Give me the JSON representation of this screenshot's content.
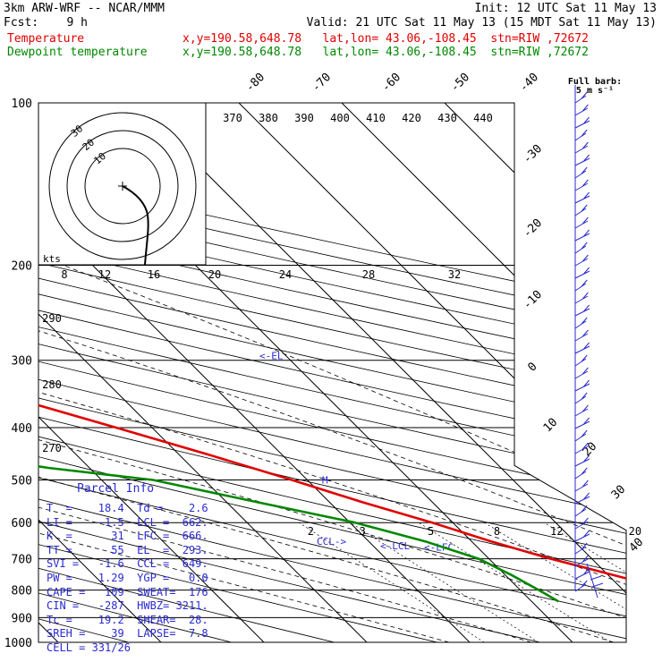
{
  "header": {
    "line1_left": "3km ARW-WRF -- NCAR/MMM",
    "line1_right": "Init: 12 UTC Sat 11 May 13",
    "line2_left": "Fcst:    9 h",
    "line2_right": "Valid: 21 UTC Sat 11 May 13 (15 MDT Sat 11 May 13)",
    "temp_label": "Temperature",
    "temp_loc": "x,y=190.58,648.78   lat,lon= 43.06,-108.45  stn=RIW ,72672",
    "dew_label": "Dewpoint temperature",
    "dew_loc": "x,y=190.58,648.78   lat,lon= 43.06,-108.45  stn=RIW ,72672",
    "barb_title": "Full barb:",
    "barb_units": "5 m s⁻¹"
  },
  "colors": {
    "temperature": "#e00000",
    "dewpoint": "#008800",
    "parcel_text": "#2a2ad0",
    "grid": "#000000"
  },
  "parcel": {
    "title": "Parcel Info",
    "rows": [
      [
        "T  =",
        "18.4",
        "Td =",
        "2.6"
      ],
      [
        "LI =",
        "-1.5",
        "LCL =",
        "662."
      ],
      [
        "K  =",
        "31",
        "LFC =",
        "666."
      ],
      [
        "TT =",
        "55",
        "EL  =",
        "293."
      ],
      [
        "SVI =",
        "-1.6",
        "CCL =",
        "649."
      ],
      [
        "PW =",
        "1.29",
        "YGP =",
        "0.0"
      ],
      [
        "CAPE =",
        "109",
        "SWEAT=",
        "176"
      ],
      [
        "CIN =",
        "-287",
        "HWBZ=",
        "3211."
      ],
      [
        "Tc =",
        "19.2",
        "SHEAR=",
        "28."
      ],
      [
        "SREH =",
        "39",
        "LAPSE=",
        "7.8"
      ],
      [
        "CELL = 331/26",
        "",
        "",
        ""
      ]
    ]
  },
  "chart_data": {
    "type": "line",
    "subtype": "skew-T log-p",
    "pressure_ticks": [
      "100",
      "200",
      "300",
      "400",
      "500",
      "600",
      "700",
      "800",
      "900",
      "1000"
    ],
    "isotherm_labels": [
      "-80",
      "-70",
      "-60",
      "-50",
      "-40",
      "-30",
      "-20",
      "-10",
      "0",
      "10",
      "20",
      "30",
      "40"
    ],
    "theta_labels": [
      "370",
      "380",
      "390",
      "400",
      "410",
      "420",
      "430",
      "440"
    ],
    "theta_left_labels": [
      "290",
      "280",
      "270"
    ],
    "hodo_speed_labels": [
      "8",
      "12",
      "16",
      "20",
      "24",
      "28",
      "32"
    ],
    "hodo_ring_labels": [
      "30",
      "20",
      "10"
    ],
    "hodo_units": "kts",
    "mixing_ratio_labels": [
      "2",
      "3",
      "5",
      "8",
      "12",
      "20"
    ],
    "level_markers": [
      "<-EL",
      "CCL->",
      "<-LCL",
      "<-LFC",
      "M"
    ],
    "series": [
      {
        "name": "Temperature",
        "pressure": [
          840,
          800,
          750,
          700,
          650,
          600,
          550,
          500,
          450,
          400,
          350,
          300,
          250,
          220,
          200,
          180,
          160,
          140,
          120,
          105
        ],
        "temperature_c": [
          18.4,
          14.6,
          10.5,
          6.0,
          1.9,
          -2.0,
          -6.8,
          -11.5,
          -17.0,
          -23.5,
          -31.0,
          -40.0,
          -49.5,
          -54.5,
          -57.5,
          -58.0,
          -56.0,
          -53.0,
          -49.5,
          -46.5
        ]
      },
      {
        "name": "Dewpoint temperature",
        "pressure": [
          840,
          800,
          750,
          700,
          650,
          600,
          550,
          500,
          475,
          450,
          430,
          400,
          350,
          320,
          300,
          280,
          250,
          220,
          200,
          180,
          160,
          140,
          120,
          100
        ],
        "temperature_c": [
          2.6,
          1.8,
          0.6,
          -1.0,
          -4.5,
          -9.5,
          -17.0,
          -25.0,
          -34.0,
          -41.0,
          -45.0,
          -44.0,
          -42.0,
          -42.0,
          -46.0,
          -52.0,
          -59.0,
          -66.0,
          -70.0,
          -72.0,
          -73.0,
          -73.5,
          -74.0,
          -74.5
        ]
      }
    ]
  }
}
